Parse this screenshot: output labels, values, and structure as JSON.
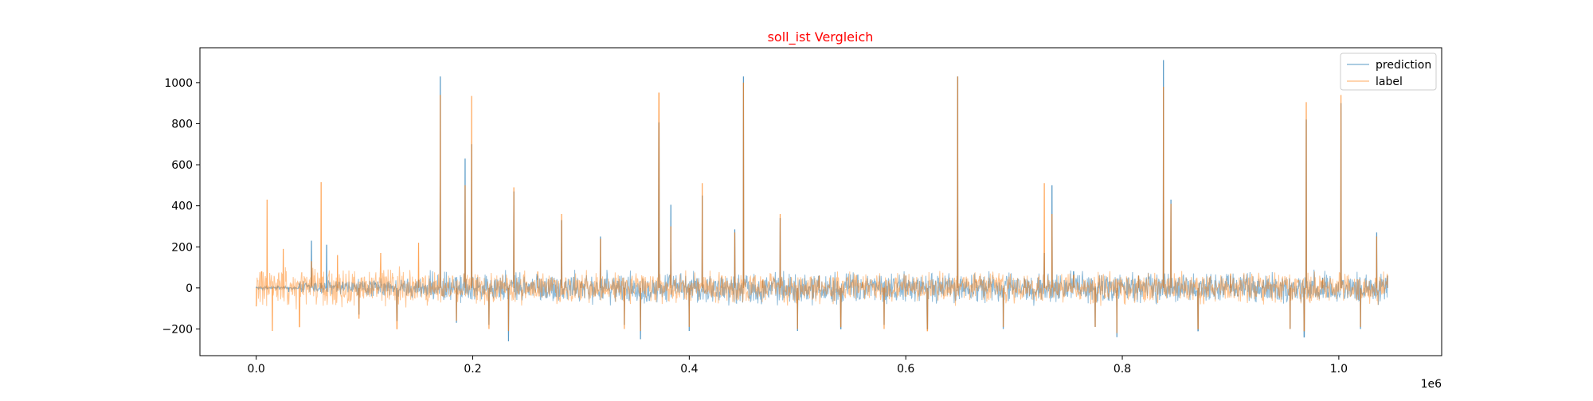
{
  "chart_data": {
    "type": "line",
    "title": "soll_ist Vergleich",
    "title_color": "#ff0000",
    "xlabel": "",
    "ylabel": "",
    "x_offset_text": "1e6",
    "xlim": [
      -52000,
      1095000
    ],
    "ylim": [
      -330,
      1170
    ],
    "x_ticks": [
      0.0,
      0.2,
      0.4,
      0.6,
      0.8,
      1.0
    ],
    "x_tick_labels": [
      "0.0",
      "0.2",
      "0.4",
      "0.6",
      "0.8",
      "1.0"
    ],
    "y_ticks": [
      -200,
      0,
      200,
      400,
      600,
      800,
      1000
    ],
    "y_tick_labels": [
      "−200",
      "0",
      "200",
      "400",
      "600",
      "800",
      "1000"
    ],
    "grid": false,
    "legend_position": "top-right",
    "series": [
      {
        "name": "prediction",
        "color": "#1f77b4",
        "alpha": 0.5,
        "x": [
          0,
          10000,
          20000,
          30000,
          40000,
          51000,
          60000,
          65000,
          80000,
          95000,
          110000,
          130000,
          150000,
          170000,
          185000,
          193000,
          199000,
          215000,
          233000,
          238000,
          260000,
          282000,
          300000,
          318000,
          340000,
          355000,
          372000,
          383000,
          400000,
          412000,
          430000,
          442000,
          450000,
          468000,
          484000,
          500000,
          520000,
          540000,
          560000,
          580000,
          600000,
          620000,
          648000,
          665000,
          690000,
          710000,
          728000,
          735000,
          755000,
          775000,
          795000,
          815000,
          838000,
          845000,
          870000,
          900000,
          930000,
          955000,
          968000,
          970000,
          985000,
          1002000,
          1020000,
          1035000,
          1045000
        ],
        "y": [
          5,
          -5,
          10,
          -20,
          20,
          230,
          25,
          210,
          30,
          -130,
          25,
          -160,
          40,
          1030,
          -170,
          630,
          700,
          -180,
          -260,
          470,
          60,
          330,
          20,
          250,
          -180,
          -250,
          805,
          405,
          -210,
          450,
          40,
          285,
          1030,
          35,
          340,
          -210,
          60,
          -200,
          25,
          -180,
          60,
          -200,
          1030,
          30,
          -200,
          40,
          170,
          500,
          80,
          -190,
          -240,
          60,
          1110,
          430,
          -210,
          60,
          30,
          -200,
          -240,
          820,
          50,
          900,
          -200,
          270,
          60
        ]
      },
      {
        "name": "label",
        "color": "#ff7f0e",
        "alpha": 0.45,
        "x": [
          0,
          5000,
          10000,
          15000,
          25000,
          40000,
          51000,
          60000,
          65000,
          75000,
          95000,
          115000,
          130000,
          150000,
          170000,
          185000,
          193000,
          199000,
          215000,
          233000,
          238000,
          260000,
          282000,
          300000,
          318000,
          340000,
          355000,
          372000,
          383000,
          400000,
          412000,
          430000,
          442000,
          450000,
          468000,
          484000,
          500000,
          520000,
          540000,
          560000,
          580000,
          600000,
          620000,
          648000,
          665000,
          690000,
          710000,
          728000,
          735000,
          755000,
          775000,
          795000,
          815000,
          838000,
          845000,
          870000,
          900000,
          930000,
          955000,
          968000,
          970000,
          985000,
          1002000,
          1020000,
          1035000,
          1045000
        ],
        "y": [
          -90,
          80,
          430,
          -210,
          190,
          -190,
          130,
          515,
          -40,
          160,
          -150,
          170,
          -200,
          220,
          940,
          -160,
          500,
          935,
          -200,
          -210,
          490,
          80,
          360,
          30,
          240,
          -200,
          -210,
          950,
          300,
          -190,
          510,
          60,
          270,
          1000,
          40,
          360,
          -200,
          60,
          -190,
          30,
          -200,
          60,
          -210,
          1030,
          40,
          -190,
          40,
          510,
          360,
          60,
          -190,
          -220,
          60,
          980,
          410,
          -200,
          70,
          40,
          -200,
          -210,
          905,
          40,
          940,
          -190,
          250,
          60
        ]
      }
    ]
  }
}
